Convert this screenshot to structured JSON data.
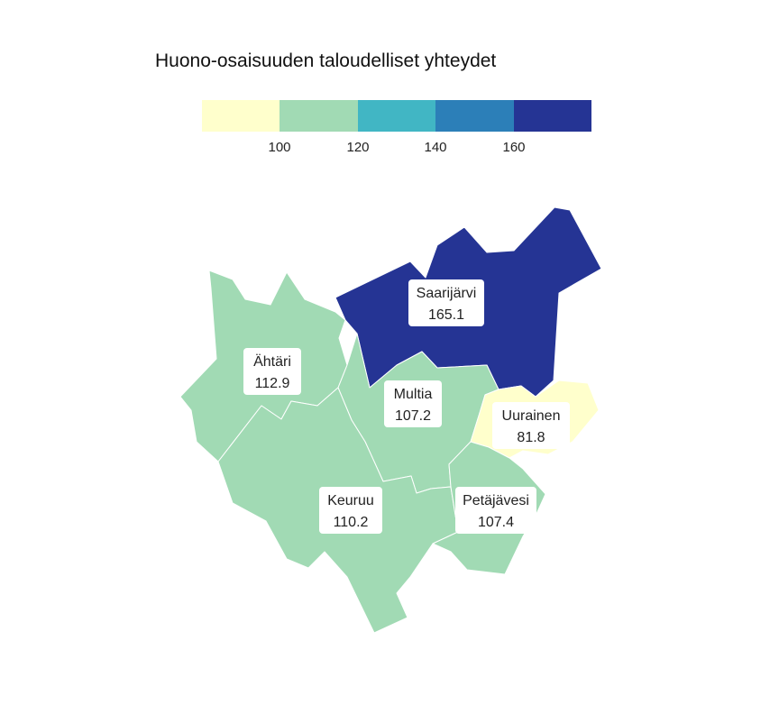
{
  "title": "Huono-osaisuuden taloudelliset yhteydet",
  "legend": {
    "colors": [
      "#ffffcc",
      "#a1dab4",
      "#41b6c4",
      "#2c7fb8",
      "#253494"
    ],
    "ticks": [
      "100",
      "120",
      "140",
      "160"
    ]
  },
  "regions": [
    {
      "name": "Saarijärvi",
      "value": "165.1",
      "color": "#253494"
    },
    {
      "name": "Ähtäri",
      "value": "112.9",
      "color": "#a1dab4"
    },
    {
      "name": "Multia",
      "value": "107.2",
      "color": "#a1dab4"
    },
    {
      "name": "Uurainen",
      "value": "81.8",
      "color": "#ffffcc"
    },
    {
      "name": "Keuruu",
      "value": "110.2",
      "color": "#a1dab4"
    },
    {
      "name": "Petäjävesi",
      "value": "107.4",
      "color": "#a1dab4"
    }
  ]
}
